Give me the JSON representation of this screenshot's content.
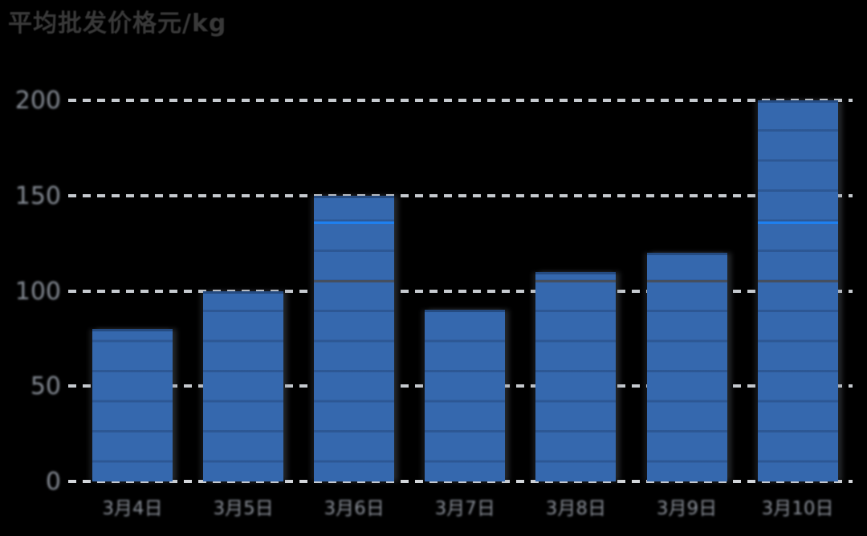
{
  "title": {
    "text": "平均批发价格元/kg"
  },
  "chart_data": {
    "type": "bar",
    "title": "平均批发价格元/kg",
    "categories": [
      "3月4日",
      "3月5日",
      "3月6日",
      "3月7日",
      "3月8日",
      "3月9日",
      "3月10日"
    ],
    "values": [
      80,
      100,
      150,
      90,
      110,
      120,
      200
    ],
    "xlabel": "",
    "ylabel": "",
    "ylim": [
      0,
      200
    ],
    "yticks": [
      0,
      50,
      100,
      150,
      200
    ],
    "grid": "horizontal-dashed",
    "legend": "none",
    "bar_color": "#3568AE",
    "gridline_color": "#c6cacf",
    "axis_label_color": "#878d96",
    "title_color": "#383838",
    "reference_lines": [
      {
        "value": 105,
        "color": "#454f5f"
      },
      {
        "value": 136,
        "color": "#1e80f0"
      }
    ]
  }
}
